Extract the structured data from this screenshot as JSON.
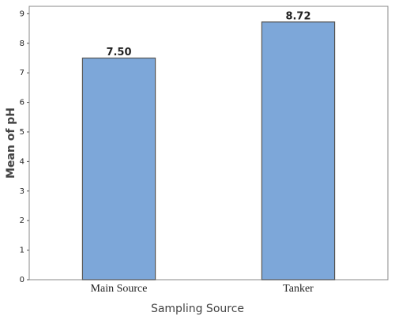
{
  "chart_data": {
    "type": "bar",
    "x_label": "Sampling Source",
    "y_label": "Mean of pH",
    "categories": [
      "Main Source",
      "Tanker"
    ],
    "values": [
      7.5,
      8.72
    ],
    "value_labels": [
      "7.50",
      "8.72"
    ],
    "color": "#7da7d9",
    "ylim": [
      0,
      9.25
    ],
    "yticks": [
      0,
      1,
      2,
      3,
      4,
      5,
      6,
      7,
      8,
      9
    ],
    "grid": false
  }
}
